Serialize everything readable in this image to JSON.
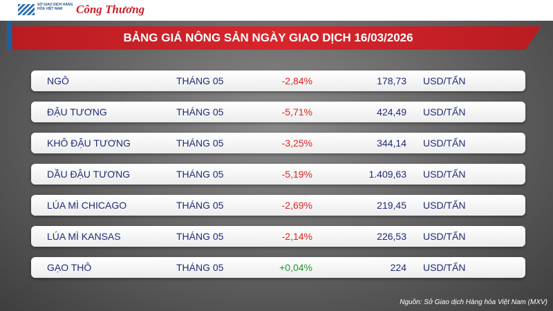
{
  "header": {
    "logo_left": "SỞ GIAO DỊCH HÀNG HÓA VIỆT NAM",
    "logo_right": "Công Thương",
    "title": "BẢNG GIÁ NÔNG SẢN NGÀY GIAO DỊCH 16/03/2026"
  },
  "table": {
    "rows": [
      [
        "NGÔ",
        "THÁNG 05",
        "-2,84%",
        "178,73",
        "USD/TẤN"
      ],
      [
        "ĐẬU TƯƠNG",
        "THÁNG 05",
        "-5,71%",
        "424,49",
        "USD/TẤN"
      ],
      [
        "KHÔ ĐẬU TƯƠNG",
        "THÁNG 05",
        "-3,25%",
        "344,14",
        "USD/TẤN"
      ],
      [
        "DẦU ĐẬU TƯƠNG",
        "THÁNG 05",
        "-5,19%",
        "1.409,63",
        "USD/TẤN"
      ],
      [
        "LÚA MÌ CHICAGO",
        "THÁNG 05",
        "-2,69%",
        "219,45",
        "USD/TẤN"
      ],
      [
        "LÚA MÌ KANSAS",
        "THÁNG 05",
        "-2,14%",
        "226,53",
        "USD/TẤN"
      ],
      [
        "GẠO THÔ",
        "THÁNG 05",
        "+0,04%",
        "224",
        "USD/TẤN"
      ]
    ]
  },
  "footer": {
    "source": "Nguồn: Sở Giao dịch Hàng hóa Việt Nam (MXV)"
  }
}
